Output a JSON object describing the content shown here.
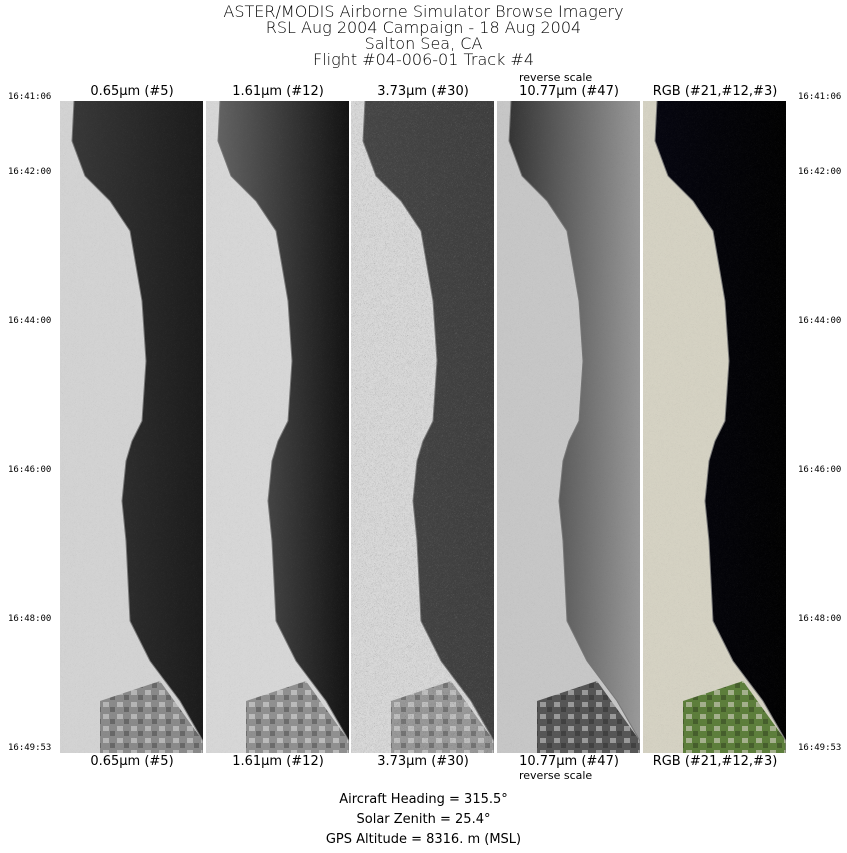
{
  "title_lines": [
    "ASTER/MODIS Airborne Simulator Browse Imagery",
    "RSL Aug 2004 Campaign - 18 Aug 2004",
    "Salton Sea, CA",
    "Flight #04-006-01 Track #4"
  ],
  "panels": [
    {
      "label": "0.65µm (#5)",
      "note": "",
      "land": "#d4d4d4",
      "sea_near": "#3a3a3a",
      "sea_far": "#1a1a1a",
      "ag": "#8a8a8a"
    },
    {
      "label": "1.61µm (#12)",
      "note": "",
      "land": "#d8d8d8",
      "sea_near": "#6a6a6a",
      "sea_far": "#111111",
      "ag": "#909090"
    },
    {
      "label": "3.73µm (#30)",
      "note": "",
      "land": "#dcdcdc",
      "sea_near": "#444444",
      "sea_far": "#3c3c3c",
      "ag": "#9a9a9a"
    },
    {
      "label": "10.77µm (#47)",
      "note": "reverse scale",
      "land": "#c8c8c8",
      "sea_near": "#2a2a2a",
      "sea_far": "#9a9a9a",
      "ag": "#555555"
    },
    {
      "label": "RGB (#21,#12,#3)",
      "note": "",
      "land": "#d6d3c4",
      "sea_near": "#050510",
      "sea_far": "#000000",
      "ag": "#5c7e3a"
    }
  ],
  "times": [
    "16:41:06",
    "16:42:00",
    "16:44:00",
    "16:46:00",
    "16:48:00",
    "16:49:53"
  ],
  "footer": {
    "heading": "Aircraft Heading =  315.5°",
    "zenith": "Solar Zenith =   25.4°",
    "altitude": "GPS Altitude =   8316. m (MSL)"
  }
}
